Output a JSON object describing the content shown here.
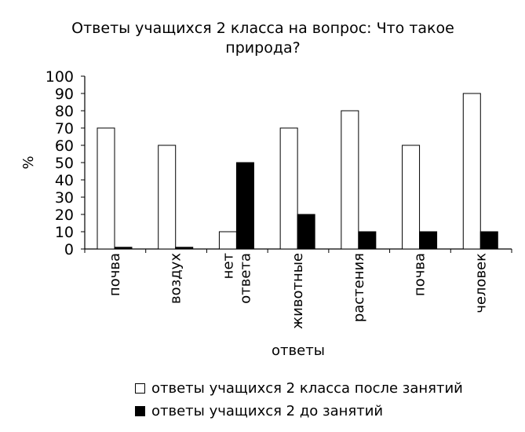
{
  "chart_data": {
    "type": "bar",
    "title_lines": [
      "Ответы учащихся 2 класса на вопрос: Что такое",
      "природа?"
    ],
    "xlabel": "ответы",
    "ylabel": "%",
    "ylim": [
      0,
      100
    ],
    "yticks": [
      0,
      10,
      20,
      30,
      40,
      50,
      60,
      70,
      80,
      90,
      100
    ],
    "categories": [
      "почва",
      "воздух",
      "нет ответа",
      "животные",
      "растения",
      "почва",
      "человек"
    ],
    "category_lines": [
      [
        "почва"
      ],
      [
        "воздух"
      ],
      [
        "нет",
        "ответа"
      ],
      [
        "животные"
      ],
      [
        "растения"
      ],
      [
        "почва"
      ],
      [
        "человек"
      ]
    ],
    "series": [
      {
        "name": "ответы учащихся 2 класса после занятий",
        "color": "#ffffff",
        "values": [
          70,
          60,
          10,
          70,
          80,
          60,
          90
        ]
      },
      {
        "name": "ответы учащихся 2 до занятий",
        "color": "#000000",
        "values": [
          1,
          1,
          50,
          20,
          10,
          10,
          10
        ]
      }
    ],
    "grid": false,
    "legend_position": "bottom"
  }
}
